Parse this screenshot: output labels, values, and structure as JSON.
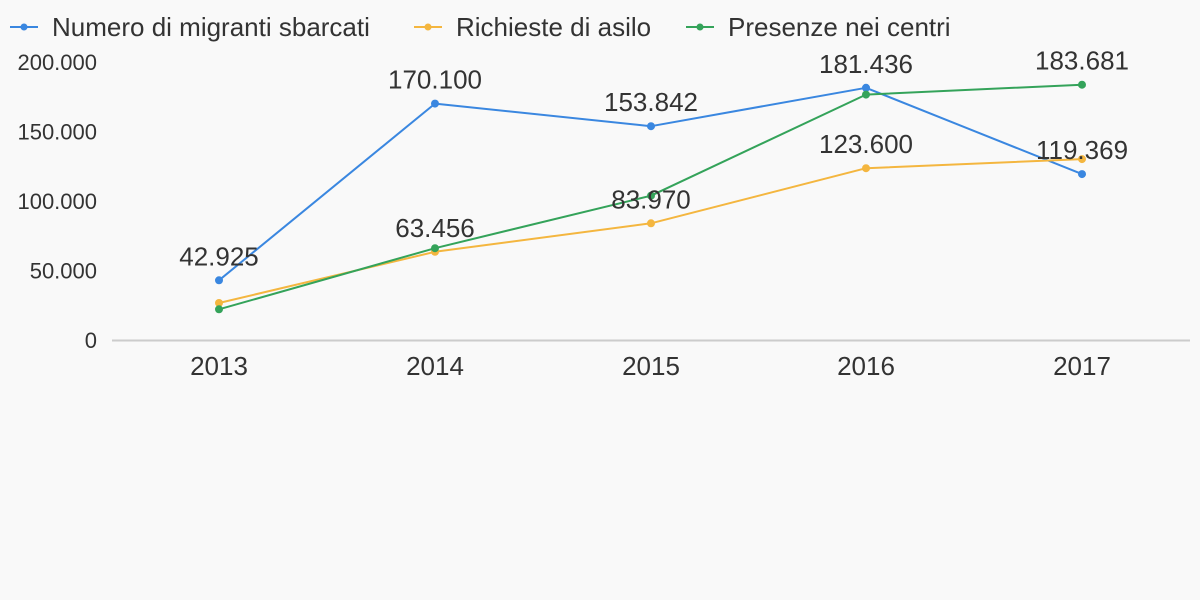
{
  "chart_data": {
    "type": "line",
    "categories": [
      "2013",
      "2014",
      "2015",
      "2016",
      "2017"
    ],
    "series": [
      {
        "name": "Numero di migranti sbarcati",
        "color": "#3a87e0",
        "values": [
          42925,
          170100,
          153842,
          181436,
          119369
        ],
        "labels": [
          "42.925",
          "170.100",
          "153.842",
          "181.436",
          "119.369"
        ]
      },
      {
        "name": "Richieste di asilo",
        "color": "#f4b63f",
        "values": [
          26620,
          63456,
          83970,
          123600,
          130119
        ],
        "labels": [
          "",
          "63.456",
          "83.970",
          "123.600",
          ""
        ]
      },
      {
        "name": "Presenze nei centri",
        "color": "#34a35a",
        "values": [
          22118,
          66066,
          103792,
          176554,
          183681
        ],
        "labels": [
          "",
          "",
          "",
          "",
          "183.681"
        ]
      }
    ],
    "y_ticks": [
      "0",
      "50.000",
      "100.000",
      "150.000",
      "200.000"
    ],
    "y_tick_values": [
      0,
      50000,
      100000,
      150000,
      200000
    ],
    "ylim": [
      0,
      200000
    ],
    "legend_position": "top-left",
    "grid": false
  }
}
